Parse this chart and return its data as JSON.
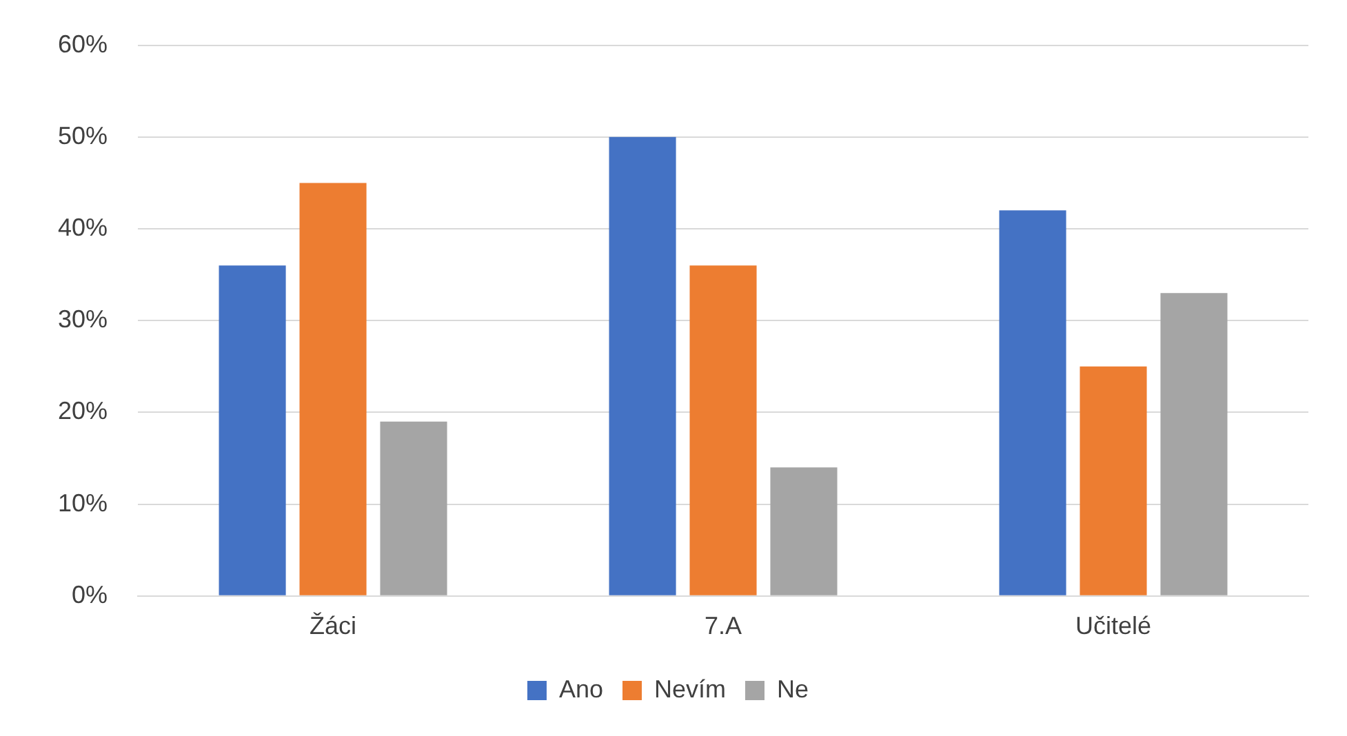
{
  "chart_data": {
    "type": "bar",
    "categories": [
      "Žáci",
      "7.A",
      "Učitelé"
    ],
    "series": [
      {
        "name": "Ano",
        "color": "#4472c4",
        "values": [
          36,
          50,
          42
        ]
      },
      {
        "name": "Nevím",
        "color": "#ed7d31",
        "values": [
          45,
          36,
          25
        ]
      },
      {
        "name": "Ne",
        "color": "#a5a5a5",
        "values": [
          19,
          14,
          33
        ]
      }
    ],
    "ylim": [
      0,
      60
    ],
    "yticks": [
      {
        "value": 0,
        "label": "0%"
      },
      {
        "value": 10,
        "label": "10%"
      },
      {
        "value": 20,
        "label": "20%"
      },
      {
        "value": 30,
        "label": "30%"
      },
      {
        "value": 40,
        "label": "40%"
      },
      {
        "value": 50,
        "label": "50%"
      },
      {
        "value": 60,
        "label": "60%"
      }
    ],
    "grid": "y",
    "legend": "bottom"
  }
}
